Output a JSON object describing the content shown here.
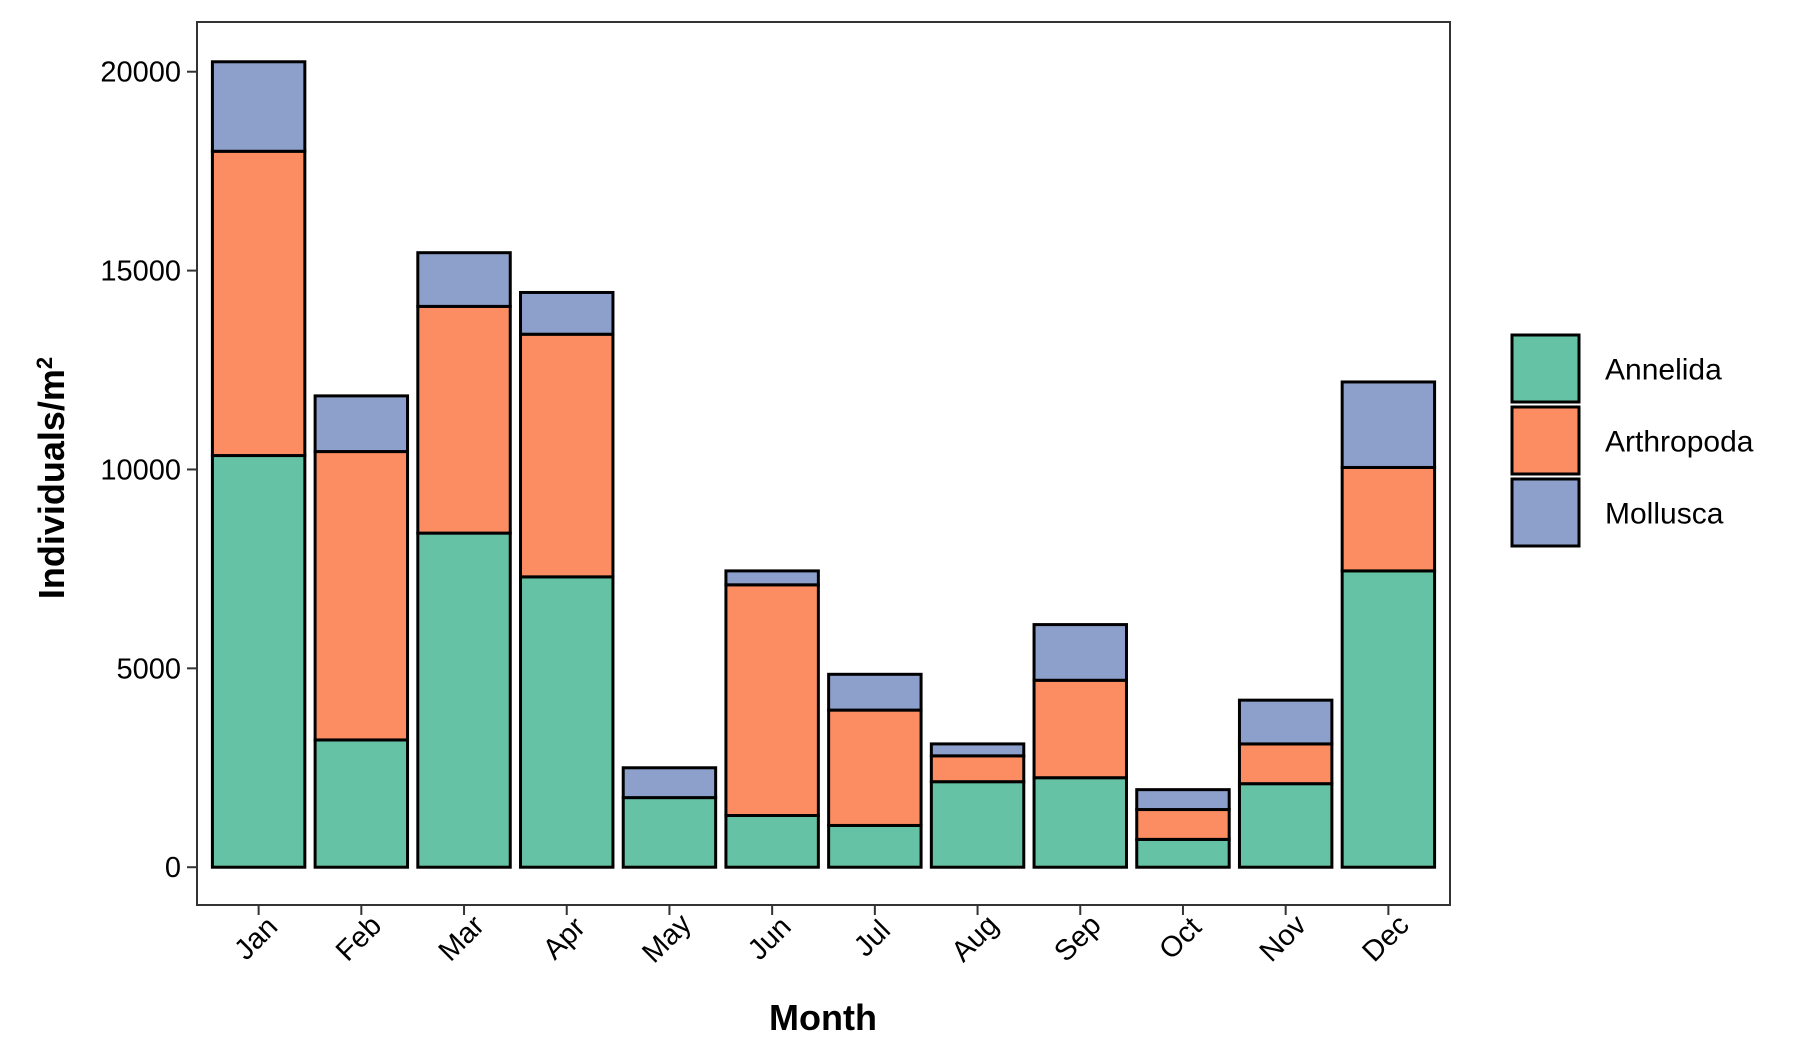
{
  "chart_data": {
    "type": "bar",
    "stacked": true,
    "categories": [
      "Jan",
      "Feb",
      "Mar",
      "Apr",
      "May",
      "Jun",
      "Jul",
      "Aug",
      "Sep",
      "Oct",
      "Nov",
      "Dec"
    ],
    "series": [
      {
        "name": "Annelida",
        "color": "#66c2a5",
        "values": [
          10350,
          3200,
          8400,
          7300,
          1750,
          1300,
          1050,
          2150,
          2250,
          700,
          2100,
          7450
        ]
      },
      {
        "name": "Arthropoda",
        "color": "#fc8d62",
        "values": [
          7650,
          7250,
          5700,
          6100,
          0,
          5800,
          2900,
          650,
          2450,
          750,
          1000,
          2600
        ]
      },
      {
        "name": "Mollusca",
        "color": "#8da0cb",
        "values": [
          2250,
          1400,
          1350,
          1050,
          750,
          350,
          900,
          300,
          1400,
          500,
          1100,
          2150
        ]
      }
    ],
    "xlabel": "Month",
    "ylabel_main": "Individuals/m",
    "ylabel_sup": "2",
    "ylim": [
      -950,
      21250
    ],
    "yticks": [
      0,
      5000,
      10000,
      15000,
      20000
    ],
    "grid": false,
    "legend_position": "right"
  }
}
